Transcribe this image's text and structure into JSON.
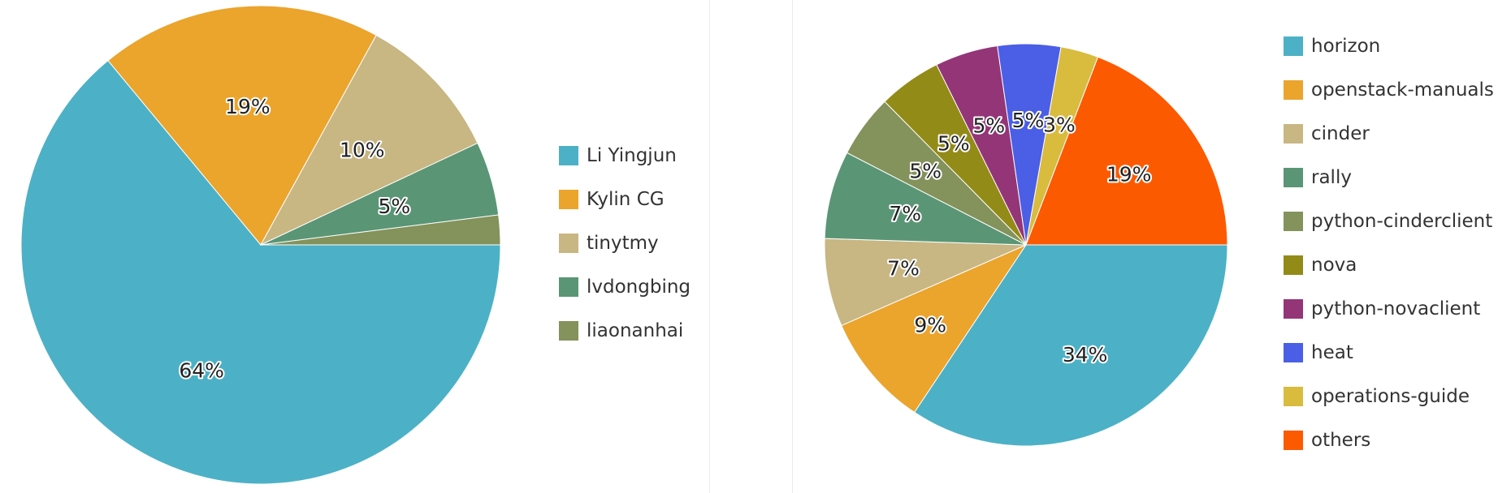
{
  "chart_data": [
    {
      "type": "pie",
      "slices": [
        {
          "label": "Li Yingjun",
          "value": 64,
          "display": "64%",
          "color": "#4cb1c6"
        },
        {
          "label": "Kylin CG",
          "value": 19,
          "display": "19%",
          "color": "#eba42c"
        },
        {
          "label": "tinytmy",
          "value": 10,
          "display": "10%",
          "color": "#c8b683"
        },
        {
          "label": "lvdongbing",
          "value": 5,
          "display": "5%",
          "color": "#5a9675"
        },
        {
          "label": "liaonanhai",
          "value": 2,
          "display": "",
          "color": "#84925b"
        }
      ],
      "legend_position": "right"
    },
    {
      "type": "pie",
      "slices": [
        {
          "label": "horizon",
          "value": 34,
          "display": "34%",
          "color": "#4cb1c6"
        },
        {
          "label": "openstack-manuals",
          "value": 9,
          "display": "9%",
          "color": "#eba42c"
        },
        {
          "label": "cinder",
          "value": 7,
          "display": "7%",
          "color": "#c8b683"
        },
        {
          "label": "rally",
          "value": 7,
          "display": "7%",
          "color": "#5a9675"
        },
        {
          "label": "python-cinderclient",
          "value": 5,
          "display": "5%",
          "color": "#84925b"
        },
        {
          "label": "nova",
          "value": 5,
          "display": "5%",
          "color": "#938b17"
        },
        {
          "label": "python-novaclient",
          "value": 5,
          "display": "5%",
          "color": "#943578"
        },
        {
          "label": "heat",
          "value": 5,
          "display": "5%",
          "color": "#4b5ee6"
        },
        {
          "label": "operations-guide",
          "value": 3,
          "display": "3%",
          "color": "#d9bb3e"
        },
        {
          "label": "others",
          "value": 19,
          "display": "19%",
          "color": "#fc5a00"
        }
      ],
      "legend_position": "right"
    }
  ]
}
